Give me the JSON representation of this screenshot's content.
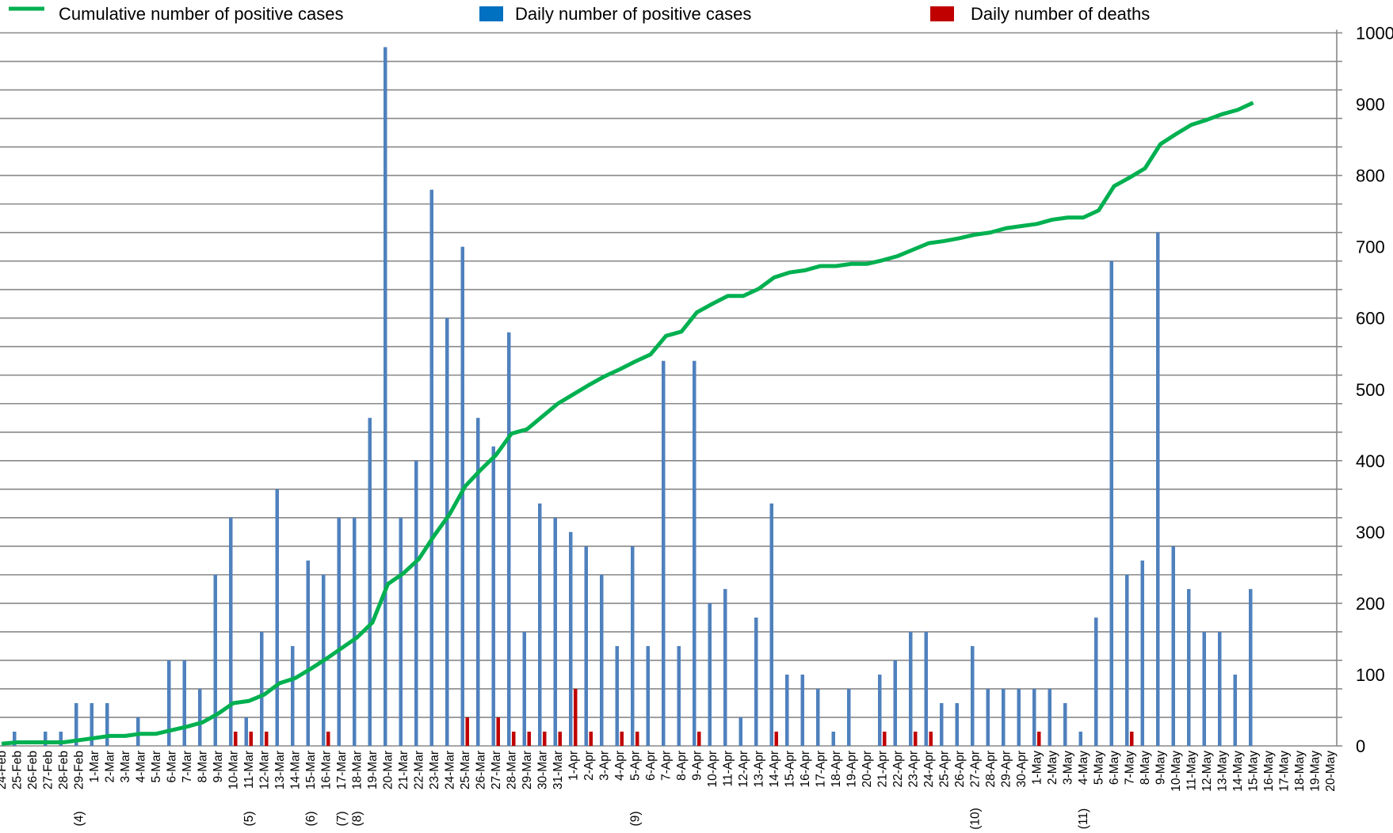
{
  "chart_data": {
    "type": "bar_line",
    "categories": [
      "24-Feb",
      "25-Feb",
      "26-Feb",
      "27-Feb",
      "28-Feb",
      "29-Feb",
      "1-Mar",
      "2-Mar",
      "3-Mar",
      "4-Mar",
      "5-Mar",
      "6-Mar",
      "7-Mar",
      "8-Mar",
      "9-Mar",
      "10-Mar",
      "11-Mar",
      "12-Mar",
      "13-Mar",
      "14-Mar",
      "15-Mar",
      "16-Mar",
      "17-Mar",
      "18-Mar",
      "19-Mar",
      "20-Mar",
      "21-Mar",
      "22-Mar",
      "23-Mar",
      "24-Mar",
      "25-Mar",
      "26-Mar",
      "27-Mar",
      "28-Mar",
      "29-Mar",
      "30-Mar",
      "31-Mar",
      "1-Apr",
      "2-Apr",
      "3-Apr",
      "4-Apr",
      "5-Apr",
      "6-Apr",
      "7-Apr",
      "8-Apr",
      "9-Apr",
      "10-Apr",
      "11-Apr",
      "12-Apr",
      "13-Apr",
      "14-Apr",
      "15-Apr",
      "16-Apr",
      "17-Apr",
      "18-Apr",
      "19-Apr",
      "20-Apr",
      "21-Apr",
      "22-Apr",
      "23-Apr",
      "24-Apr",
      "25-Apr",
      "26-Apr",
      "27-Apr",
      "28-Apr",
      "29-Apr",
      "30-Apr",
      "1-May",
      "2-May",
      "3-May",
      "4-May",
      "5-May",
      "6-May",
      "7-May",
      "8-May",
      "9-May",
      "10-May",
      "11-May",
      "12-May",
      "13-May",
      "14-May",
      "15-May",
      "16-May",
      "17-May",
      "18-May",
      "19-May",
      "20-May"
    ],
    "series": [
      {
        "name": "Cumulative number of positive cases",
        "type": "line",
        "color": "#00b050",
        "values": [
          3,
          5,
          5,
          5,
          5,
          8,
          11,
          14,
          14,
          17,
          17,
          22,
          27,
          33,
          45,
          60,
          63,
          72,
          88,
          95,
          108,
          122,
          137,
          152,
          173,
          227,
          242,
          262,
          295,
          325,
          364,
          387,
          408,
          438,
          444,
          462,
          480,
          493,
          506,
          518,
          528,
          539,
          549,
          575,
          581,
          608,
          620,
          631,
          631,
          641,
          657,
          664,
          667,
          673,
          673,
          676,
          676,
          681,
          687,
          696,
          705,
          708,
          712,
          717,
          720,
          726,
          729,
          732,
          738,
          741,
          741,
          751,
          785,
          797,
          810,
          844,
          858,
          871,
          878,
          886,
          892,
          902,
          null,
          null,
          null,
          null,
          null
        ]
      },
      {
        "name": "Daily number of positive cases",
        "type": "bar",
        "color": "#4f81bd",
        "legend_color": "#0070c0",
        "values": [
          0,
          20,
          0,
          20,
          20,
          60,
          60,
          60,
          0,
          40,
          0,
          120,
          120,
          80,
          240,
          320,
          40,
          160,
          360,
          140,
          260,
          240,
          320,
          320,
          460,
          980,
          320,
          400,
          780,
          600,
          700,
          460,
          420,
          580,
          160,
          340,
          320,
          300,
          280,
          240,
          140,
          280,
          140,
          540,
          140,
          540,
          200,
          220,
          40,
          180,
          340,
          100,
          100,
          80,
          20,
          80,
          0,
          100,
          120,
          160,
          160,
          60,
          60,
          140,
          80,
          80,
          80,
          80,
          80,
          60,
          20,
          180,
          680,
          240,
          260,
          720,
          280,
          220,
          160,
          160,
          100,
          220,
          null,
          null,
          null,
          null,
          null
        ]
      },
      {
        "name": "Daily number of deaths",
        "type": "bar",
        "color": "#c00000",
        "values": [
          0,
          0,
          0,
          0,
          0,
          0,
          0,
          0,
          0,
          0,
          0,
          0,
          0,
          0,
          0,
          20,
          20,
          20,
          0,
          0,
          0,
          20,
          0,
          0,
          0,
          0,
          0,
          0,
          0,
          0,
          40,
          0,
          40,
          20,
          20,
          20,
          20,
          80,
          20,
          0,
          20,
          20,
          0,
          0,
          0,
          20,
          0,
          0,
          0,
          0,
          20,
          0,
          0,
          0,
          0,
          0,
          0,
          20,
          0,
          20,
          20,
          0,
          0,
          0,
          0,
          0,
          0,
          20,
          0,
          0,
          0,
          0,
          0,
          20,
          0,
          0,
          0,
          0,
          0,
          0,
          0,
          0,
          null,
          null,
          null,
          null,
          null
        ]
      }
    ],
    "annotations": [
      {
        "text": "(4)",
        "x": "29-Feb"
      },
      {
        "text": "(5)",
        "x": "11-Mar"
      },
      {
        "text": "(6)",
        "x": "15-Mar"
      },
      {
        "text": "(7)",
        "x": "17-Mar"
      },
      {
        "text": "(8)",
        "x": "18-Mar"
      },
      {
        "text": "(9)",
        "x": "5-Apr"
      },
      {
        "text": "(10)",
        "x": "27-Apr"
      },
      {
        "text": "(11)",
        "x": "4-May"
      }
    ],
    "ylim": [
      0,
      1000
    ],
    "yticks": [
      0,
      100,
      200,
      300,
      400,
      500,
      600,
      700,
      800,
      900,
      1000
    ],
    "ygrid": [
      0,
      40,
      80,
      120,
      160,
      200,
      240,
      280,
      320,
      360,
      400,
      440,
      480,
      520,
      560,
      600,
      640,
      680,
      720,
      760,
      800,
      840,
      880,
      920,
      960,
      1000
    ],
    "grid": true,
    "legend": "top"
  }
}
